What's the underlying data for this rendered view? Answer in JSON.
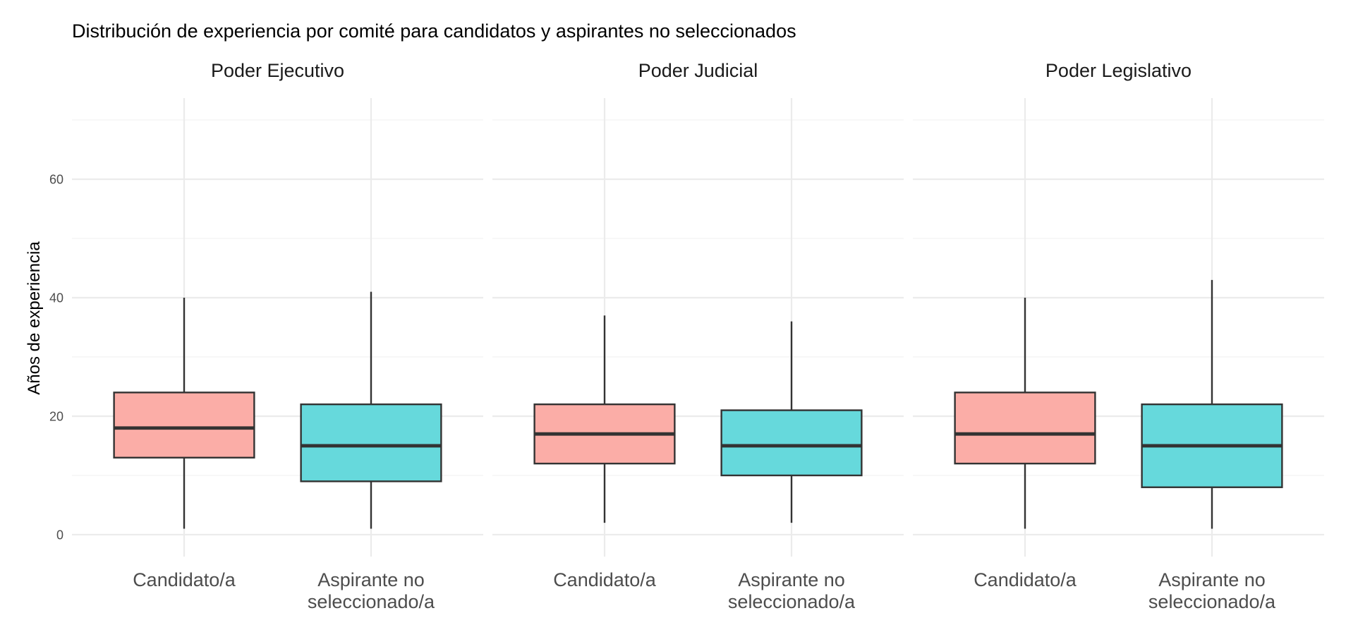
{
  "chart_data": {
    "type": "boxplot",
    "title": "Distribución de experiencia por comité para candidatos y aspirantes no seleccionados",
    "xlabel": "",
    "ylabel": "Años de experiencia",
    "ylim": [
      -3.7,
      73.7
    ],
    "yticks": [
      0,
      20,
      40,
      60
    ],
    "ytick_labels": [
      "0",
      "20",
      "40",
      "60"
    ],
    "yminor": [
      10,
      30,
      50,
      70
    ],
    "grid": true,
    "categories": [
      "Candidato/a",
      "Aspirante no seleccionado/a"
    ],
    "category_lines": [
      [
        "Candidato/a"
      ],
      [
        "Aspirante no",
        "seleccionado/a"
      ]
    ],
    "colors": {
      "Candidato/a": "#F8766D",
      "Aspirante no seleccionado/a": "#00BFC4"
    },
    "fill_alpha": 0.6,
    "facets": [
      {
        "name": "Poder Ejecutivo",
        "boxes": [
          {
            "category": "Candidato/a",
            "min": 1,
            "q1": 13,
            "median": 18,
            "q3": 24,
            "max": 40
          },
          {
            "category": "Aspirante no seleccionado/a",
            "min": 1,
            "q1": 9,
            "median": 15,
            "q3": 22,
            "max": 41
          }
        ]
      },
      {
        "name": "Poder Judicial",
        "boxes": [
          {
            "category": "Candidato/a",
            "min": 2,
            "q1": 12,
            "median": 17,
            "q3": 22,
            "max": 37
          },
          {
            "category": "Aspirante no seleccionado/a",
            "min": 2,
            "q1": 10,
            "median": 15,
            "q3": 21,
            "max": 36
          }
        ]
      },
      {
        "name": "Poder Legislativo",
        "boxes": [
          {
            "category": "Candidato/a",
            "min": 1,
            "q1": 12,
            "median": 17,
            "q3": 24,
            "max": 40
          },
          {
            "category": "Aspirante no seleccionado/a",
            "min": 1,
            "q1": 8,
            "median": 15,
            "q3": 22,
            "max": 43
          }
        ]
      }
    ]
  }
}
